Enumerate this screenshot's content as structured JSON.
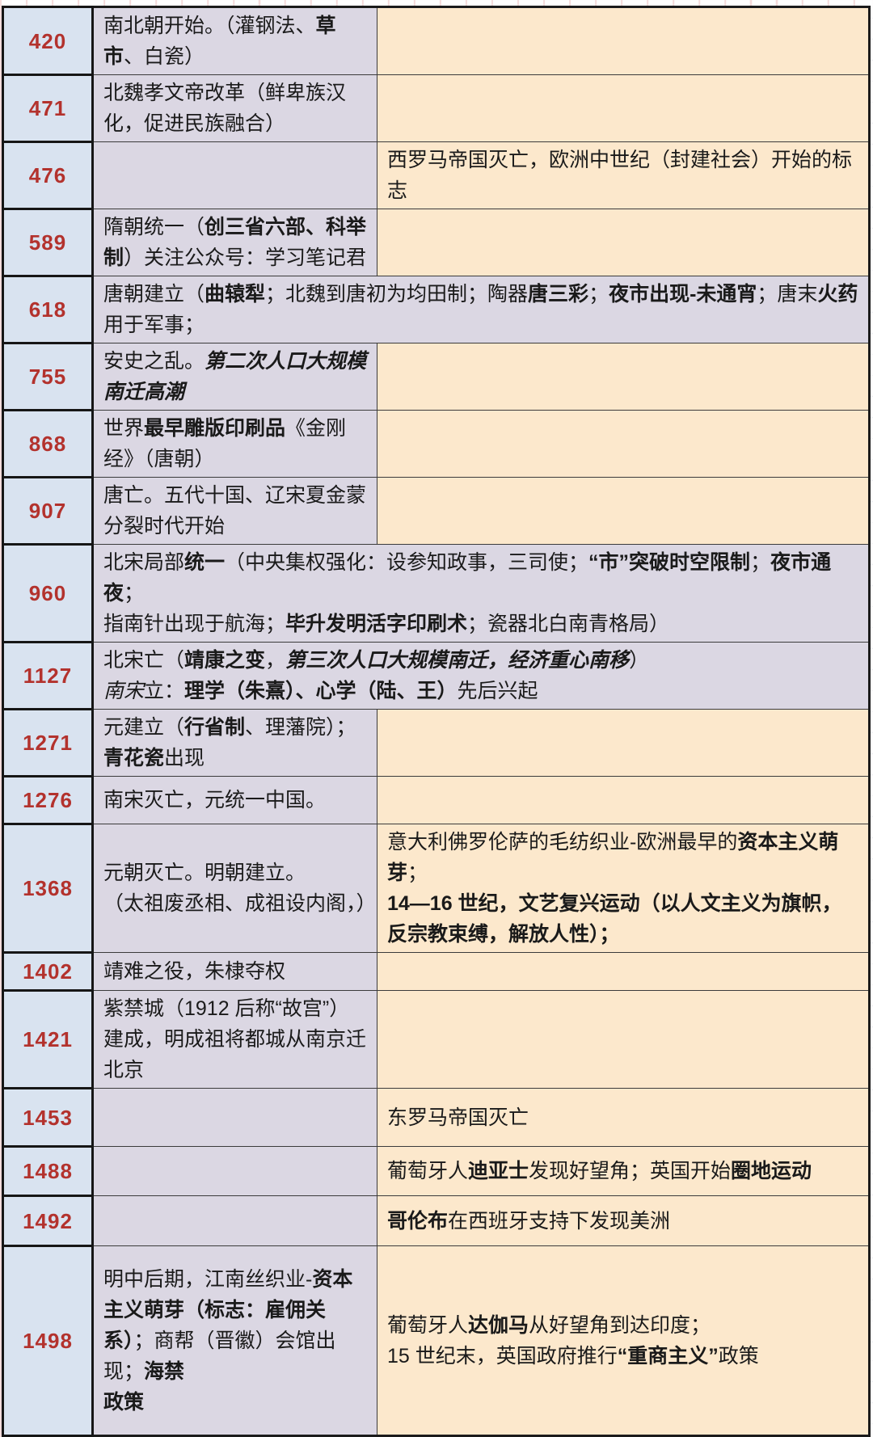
{
  "colors": {
    "year_text": "#b3322d",
    "year_cell_bg": "#d9e3f0",
    "china_cell_bg": "#dbd7e3",
    "world_cell_bg": "#fce8cc",
    "border": "#3b3b3b",
    "outer_border": "#1b1b1b"
  },
  "table": {
    "rows": [
      {
        "year": "420",
        "merged": false,
        "china": [
          {
            "t": "南北朝开始。（灌钢法、"
          },
          {
            "t": "草市",
            "b": 1
          },
          {
            "t": "、白瓷）"
          }
        ],
        "world": []
      },
      {
        "year": "471",
        "merged": false,
        "china": [
          {
            "t": "北魏孝文帝改革（鲜卑族汉化，促进民族融合）"
          }
        ],
        "world": []
      },
      {
        "year": "476",
        "merged": false,
        "china": [],
        "world": [
          {
            "t": "西罗马帝国灭亡，欧洲中世纪（封建社会）开始的标志"
          }
        ]
      },
      {
        "year": "589",
        "merged": false,
        "china": [
          {
            "t": "隋朝统一（"
          },
          {
            "t": "创三省六部、科举制",
            "b": 1
          },
          {
            "t": "）关注公众号：学习笔记君"
          }
        ],
        "world": []
      },
      {
        "year": "618",
        "merged": true,
        "china": [
          {
            "t": "唐朝建立（"
          },
          {
            "t": "曲辕犁",
            "b": 1
          },
          {
            "t": "；北魏到唐初为均田制；陶器"
          },
          {
            "t": "唐三彩",
            "b": 1
          },
          {
            "t": "；"
          },
          {
            "t": "夜市出现-未通宵",
            "b": 1
          },
          {
            "t": "；唐末"
          },
          {
            "t": "火药",
            "b": 1
          },
          {
            "br": 1
          },
          {
            "t": "用于军事；"
          }
        ],
        "world": []
      },
      {
        "year": "755",
        "merged": false,
        "china": [
          {
            "t": "安史之乱。"
          },
          {
            "t": "第二次人口大规模南迁高潮",
            "b": 1,
            "i": 1
          }
        ],
        "world": []
      },
      {
        "year": "868",
        "merged": false,
        "china": [
          {
            "t": "世界"
          },
          {
            "t": "最早雕版印刷品",
            "b": 1
          },
          {
            "t": "《金刚经》（唐朝）"
          }
        ],
        "world": []
      },
      {
        "year": "907",
        "merged": false,
        "china": [
          {
            "t": "唐亡。五代十国、辽宋夏金蒙分裂时代开始"
          }
        ],
        "world": []
      },
      {
        "year": "960",
        "merged": true,
        "china": [
          {
            "t": "北宋局部"
          },
          {
            "t": "统一",
            "b": 1
          },
          {
            "t": "（中央集权强化：设参知政事，三司使；"
          },
          {
            "t": "“市”突破时空限制",
            "b": 1
          },
          {
            "t": "；"
          },
          {
            "t": "夜市通",
            "b": 1
          },
          {
            "br": 1
          },
          {
            "t": "夜",
            "b": 1
          },
          {
            "t": "；"
          },
          {
            "br": 1
          },
          {
            "t": "指南针出现于航海；"
          },
          {
            "t": "毕升发明活字印刷术",
            "b": 1
          },
          {
            "t": "；瓷器北白南青格局）"
          }
        ],
        "world": []
      },
      {
        "year": "1127",
        "merged": true,
        "china": [
          {
            "t": "北宋亡（"
          },
          {
            "t": "靖康之变",
            "b": 1
          },
          {
            "t": "，"
          },
          {
            "t": "第三次人口大规模南迁，经济重心南移",
            "b": 1,
            "i": 1
          },
          {
            "t": "）"
          },
          {
            "br": 1
          },
          {
            "t": "南宋",
            "i": 1
          },
          {
            "t": "立："
          },
          {
            "t": "理学（朱熹）、心学（陆、王）",
            "b": 1
          },
          {
            "t": "先后兴起"
          }
        ],
        "world": []
      },
      {
        "year": "1271",
        "merged": false,
        "china": [
          {
            "t": "元建立（"
          },
          {
            "t": "行省制",
            "b": 1
          },
          {
            "t": "、理藩院）；"
          },
          {
            "br": 1
          },
          {
            "t": "青花瓷",
            "b": 1
          },
          {
            "t": "出现"
          }
        ],
        "world": []
      },
      {
        "year": "1276",
        "merged": false,
        "china": [
          {
            "t": "南宋灭亡，元统一中国。"
          }
        ],
        "world": []
      },
      {
        "year": "1368",
        "merged": false,
        "china": [
          {
            "t": "元朝灭亡。明朝建立。"
          },
          {
            "br": 1
          },
          {
            "t": "（太祖废丞相、成祖设内阁，）"
          }
        ],
        "world": [
          {
            "t": "意大利佛罗伦萨的毛纺织业-欧洲最早的"
          },
          {
            "t": "资本主义萌芽",
            "b": 1
          },
          {
            "t": "；"
          },
          {
            "br": 1
          },
          {
            "t": "14—16 世纪，",
            "b": 1
          },
          {
            "t": "文艺复兴运动（以人文主义为旗帜，反宗教束缚，解放人性）；",
            "b": 1
          }
        ]
      },
      {
        "year": "1402",
        "merged": false,
        "china": [
          {
            "t": "靖难之役，朱棣夺权"
          }
        ],
        "world": []
      },
      {
        "year": "1421",
        "merged": false,
        "china": [
          {
            "t": "紫禁城（1912 后称“故宫”）建成，明成祖将都城从南京迁北京"
          }
        ],
        "world": []
      },
      {
        "year": "1453",
        "merged": false,
        "china": [],
        "world": [
          {
            "t": "东罗马帝国灭亡"
          }
        ]
      },
      {
        "year": "1488",
        "merged": false,
        "china": [],
        "world": [
          {
            "t": "葡萄牙人"
          },
          {
            "t": "迪亚士",
            "b": 1
          },
          {
            "t": "发现好望角；英国开始"
          },
          {
            "t": "圈地运动",
            "b": 1
          }
        ]
      },
      {
        "year": "1492",
        "merged": false,
        "china": [],
        "world": [
          {
            "t": "哥伦布",
            "b": 1
          },
          {
            "t": "在西班牙支持下发现美洲"
          }
        ]
      },
      {
        "year": "1498",
        "merged": false,
        "china": [
          {
            "t": "明中后期，江南丝织业-"
          },
          {
            "t": "资本主义萌芽（标志：雇佣关系）",
            "b": 1
          },
          {
            "t": "；"
          },
          {
            "t": "商帮（晋徽）会馆出现；"
          },
          {
            "t": "海禁",
            "b": 1
          },
          {
            "br": 1
          },
          {
            "t": "政策",
            "b": 1
          }
        ],
        "world": [
          {
            "t": "葡萄牙人"
          },
          {
            "t": "达伽马",
            "b": 1
          },
          {
            "t": "从好望角到达印度；"
          },
          {
            "br": 1
          },
          {
            "t": "15 世纪末，英国政府推行"
          },
          {
            "t": "“重商主义”",
            "b": 1
          },
          {
            "t": "政策"
          }
        ]
      }
    ]
  }
}
